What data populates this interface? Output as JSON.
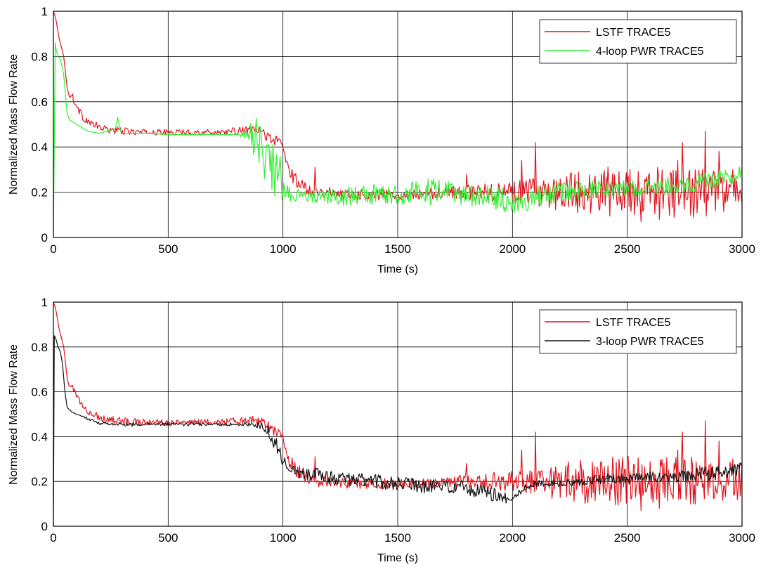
{
  "chart_data": [
    {
      "type": "line",
      "xlabel": "Time (s)",
      "ylabel": "Normalized Mass Flow Rate",
      "xlim": [
        0,
        3000
      ],
      "ylim": [
        0,
        1
      ],
      "xticks": [
        "0",
        "500",
        "1000",
        "1500",
        "2000",
        "2500",
        "3000"
      ],
      "yticks": [
        "0",
        "0.2",
        "0.4",
        "0.6",
        "0.8",
        "1"
      ],
      "grid": true,
      "legend_position": "top-right",
      "series": [
        {
          "name": "LSTF TRACE5",
          "color": "#e0141e",
          "x": [
            0,
            10,
            25,
            45,
            60,
            70,
            80,
            100,
            130,
            170,
            220,
            300,
            400,
            500,
            600,
            700,
            800,
            850,
            900,
            930,
            960,
            990,
            1000,
            1010,
            1030,
            1050,
            1070,
            1100,
            1150,
            1200,
            1300,
            1400,
            1500,
            1600,
            1700,
            1800,
            1900,
            2000,
            2100,
            2200,
            2300,
            2400,
            2500,
            2600,
            2700,
            2800,
            2900,
            3000
          ],
          "values": [
            1.0,
            0.97,
            0.88,
            0.8,
            0.66,
            0.62,
            0.63,
            0.58,
            0.53,
            0.5,
            0.48,
            0.47,
            0.465,
            0.465,
            0.465,
            0.465,
            0.47,
            0.475,
            0.47,
            0.45,
            0.43,
            0.42,
            0.4,
            0.35,
            0.29,
            0.26,
            0.24,
            0.22,
            0.2,
            0.2,
            0.19,
            0.19,
            0.19,
            0.19,
            0.2,
            0.2,
            0.2,
            0.2,
            0.2,
            0.2,
            0.2,
            0.2,
            0.2,
            0.2,
            0.2,
            0.2,
            0.2,
            0.2
          ],
          "noise": [
            0,
            0,
            0,
            0,
            0,
            0,
            0.01,
            0.01,
            0.01,
            0.01,
            0.01,
            0.01,
            0.008,
            0.008,
            0.008,
            0.008,
            0.01,
            0.01,
            0.015,
            0.015,
            0.015,
            0.015,
            0.015,
            0.02,
            0.02,
            0.02,
            0.02,
            0.02,
            0.015,
            0.015,
            0.015,
            0.015,
            0.015,
            0.015,
            0.015,
            0.02,
            0.025,
            0.03,
            0.04,
            0.05,
            0.06,
            0.07,
            0.07,
            0.07,
            0.07,
            0.07,
            0.06,
            0.05
          ],
          "spikes": [
            [
              1140,
              0.31
            ],
            [
              1570,
              0.32
            ],
            [
              1800,
              0.28
            ],
            [
              2040,
              0.34
            ],
            [
              2100,
              0.42
            ],
            [
              2190,
              0.34
            ],
            [
              2330,
              0.4
            ],
            [
              2470,
              0.4
            ],
            [
              2610,
              0.38
            ],
            [
              2720,
              0.34
            ],
            [
              2740,
              0.42
            ],
            [
              2840,
              0.47
            ],
            [
              2900,
              0.38
            ],
            [
              2960,
              0.3
            ],
            [
              2350,
              0.07
            ],
            [
              2560,
              0.07
            ],
            [
              2640,
              0.08
            ]
          ]
        },
        {
          "name": "4-loop PWR TRACE5",
          "color": "#33ee33",
          "x": [
            0,
            8,
            12,
            20,
            30,
            45,
            55,
            60,
            70,
            100,
            150,
            200,
            270,
            280,
            290,
            300,
            400,
            500,
            600,
            700,
            800,
            840,
            860,
            880,
            900,
            930,
            960,
            990,
            1000,
            1020,
            1050,
            1100,
            1200,
            1300,
            1400,
            1500,
            1600,
            1700,
            1800,
            1850,
            1900,
            2000,
            2050,
            2100,
            2200,
            2300,
            2400,
            2500,
            2600,
            2700,
            2800,
            2900,
            3000
          ],
          "values": [
            0.0,
            0.86,
            0.83,
            0.8,
            0.79,
            0.72,
            0.6,
            0.55,
            0.52,
            0.5,
            0.47,
            0.46,
            0.48,
            0.53,
            0.48,
            0.46,
            0.46,
            0.455,
            0.455,
            0.455,
            0.455,
            0.455,
            0.45,
            0.44,
            0.4,
            0.35,
            0.3,
            0.26,
            0.22,
            0.2,
            0.19,
            0.18,
            0.18,
            0.185,
            0.19,
            0.195,
            0.2,
            0.2,
            0.19,
            0.17,
            0.18,
            0.16,
            0.15,
            0.18,
            0.2,
            0.21,
            0.21,
            0.215,
            0.22,
            0.23,
            0.24,
            0.26,
            0.28
          ],
          "noise": [
            0,
            0,
            0,
            0,
            0,
            0,
            0,
            0,
            0,
            0,
            0,
            0,
            0,
            0,
            0,
            0,
            0,
            0,
            0,
            0,
            0,
            0.02,
            0.04,
            0.06,
            0.07,
            0.07,
            0.07,
            0.06,
            0.05,
            0.03,
            0.02,
            0.015,
            0.02,
            0.03,
            0.03,
            0.035,
            0.04,
            0.035,
            0.03,
            0.03,
            0.035,
            0.035,
            0.03,
            0.03,
            0.03,
            0.025,
            0.025,
            0.025,
            0.025,
            0.025,
            0.025,
            0.025,
            0.025
          ],
          "spikes": []
        }
      ]
    },
    {
      "type": "line",
      "xlabel": "Time (s)",
      "ylabel": "Normalized Mass Flow Rate",
      "xlim": [
        0,
        3000
      ],
      "ylim": [
        0,
        1
      ],
      "xticks": [
        "0",
        "500",
        "1000",
        "1500",
        "2000",
        "2500",
        "3000"
      ],
      "yticks": [
        "0",
        "0.2",
        "0.4",
        "0.6",
        "0.8",
        "1"
      ],
      "grid": true,
      "legend_position": "top-right",
      "series": [
        {
          "name": "LSTF TRACE5",
          "color": "#e0141e",
          "x": [
            0,
            10,
            25,
            45,
            60,
            70,
            80,
            100,
            130,
            170,
            220,
            300,
            400,
            500,
            600,
            700,
            800,
            850,
            900,
            930,
            960,
            990,
            1000,
            1010,
            1030,
            1050,
            1070,
            1100,
            1150,
            1200,
            1300,
            1400,
            1500,
            1600,
            1700,
            1800,
            1900,
            2000,
            2100,
            2200,
            2300,
            2400,
            2500,
            2600,
            2700,
            2800,
            2900,
            3000
          ],
          "values": [
            1.0,
            0.97,
            0.88,
            0.8,
            0.66,
            0.62,
            0.63,
            0.58,
            0.53,
            0.5,
            0.48,
            0.47,
            0.465,
            0.465,
            0.465,
            0.465,
            0.47,
            0.475,
            0.47,
            0.45,
            0.43,
            0.42,
            0.4,
            0.35,
            0.29,
            0.26,
            0.24,
            0.22,
            0.2,
            0.2,
            0.19,
            0.19,
            0.19,
            0.19,
            0.2,
            0.2,
            0.2,
            0.2,
            0.2,
            0.2,
            0.2,
            0.2,
            0.2,
            0.2,
            0.2,
            0.2,
            0.2,
            0.2
          ],
          "noise": [
            0,
            0,
            0,
            0,
            0,
            0,
            0.01,
            0.01,
            0.01,
            0.01,
            0.01,
            0.01,
            0.008,
            0.008,
            0.008,
            0.008,
            0.01,
            0.01,
            0.015,
            0.015,
            0.015,
            0.015,
            0.015,
            0.02,
            0.02,
            0.02,
            0.02,
            0.02,
            0.015,
            0.015,
            0.015,
            0.015,
            0.015,
            0.015,
            0.015,
            0.02,
            0.025,
            0.03,
            0.04,
            0.05,
            0.06,
            0.07,
            0.07,
            0.07,
            0.07,
            0.07,
            0.06,
            0.05
          ],
          "spikes": [
            [
              1140,
              0.31
            ],
            [
              1570,
              0.32
            ],
            [
              1800,
              0.28
            ],
            [
              2040,
              0.34
            ],
            [
              2100,
              0.42
            ],
            [
              2190,
              0.34
            ],
            [
              2330,
              0.4
            ],
            [
              2470,
              0.4
            ],
            [
              2610,
              0.38
            ],
            [
              2720,
              0.34
            ],
            [
              2740,
              0.42
            ],
            [
              2840,
              0.47
            ],
            [
              2900,
              0.38
            ],
            [
              2960,
              0.3
            ],
            [
              2350,
              0.07
            ],
            [
              2560,
              0.07
            ],
            [
              2640,
              0.08
            ]
          ]
        },
        {
          "name": "3-loop PWR TRACE5",
          "color": "#111111",
          "x": [
            0,
            4,
            10,
            20,
            30,
            40,
            50,
            60,
            80,
            100,
            150,
            200,
            300,
            400,
            500,
            600,
            700,
            800,
            900,
            930,
            960,
            990,
            1000,
            1020,
            1050,
            1100,
            1200,
            1300,
            1400,
            1500,
            1600,
            1700,
            1800,
            1900,
            1950,
            2000,
            2050,
            2100,
            2200,
            2300,
            2400,
            2500,
            2600,
            2700,
            2800,
            2900,
            3000
          ],
          "values": [
            0.0,
            0.85,
            0.84,
            0.8,
            0.78,
            0.72,
            0.6,
            0.53,
            0.51,
            0.5,
            0.48,
            0.46,
            0.455,
            0.455,
            0.455,
            0.455,
            0.455,
            0.455,
            0.45,
            0.43,
            0.38,
            0.33,
            0.29,
            0.27,
            0.25,
            0.24,
            0.22,
            0.21,
            0.2,
            0.19,
            0.18,
            0.18,
            0.17,
            0.15,
            0.13,
            0.12,
            0.17,
            0.19,
            0.19,
            0.2,
            0.21,
            0.21,
            0.22,
            0.22,
            0.23,
            0.24,
            0.26
          ],
          "noise": [
            0,
            0,
            0,
            0,
            0,
            0,
            0,
            0,
            0,
            0,
            0.005,
            0.005,
            0.005,
            0.005,
            0.005,
            0.005,
            0.005,
            0.005,
            0.01,
            0.015,
            0.02,
            0.02,
            0.02,
            0.02,
            0.02,
            0.02,
            0.02,
            0.02,
            0.02,
            0.02,
            0.02,
            0.02,
            0.02,
            0.02,
            0.02,
            0.01,
            0.01,
            0.01,
            0.01,
            0.01,
            0.015,
            0.015,
            0.015,
            0.015,
            0.02,
            0.02,
            0.02
          ],
          "spikes": []
        }
      ]
    }
  ]
}
